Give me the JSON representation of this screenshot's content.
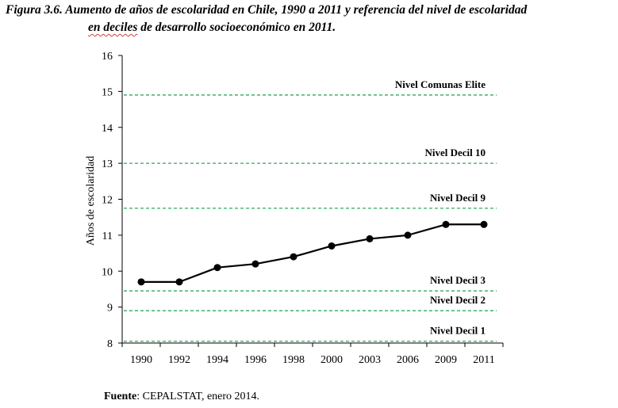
{
  "title": {
    "line1": "Figura 3.6. Aumento de años de escolaridad en Chile, 1990 a 2011 y referencia del nivel de escolaridad",
    "line2_wavy": "en deciles",
    "line2_rest": " de desarrollo socioeconómico en 2011."
  },
  "source": {
    "label": "Fuente",
    "text": ": CEPALSTAT, enero 2014."
  },
  "colors": {
    "series": "#000000",
    "reference": "#2eab5a",
    "axis": "#000000"
  },
  "chart_data": {
    "type": "line",
    "title": "",
    "xlabel": "",
    "ylabel": "Años de escolaridad",
    "ylim": [
      8,
      16
    ],
    "yticks": [
      8,
      9,
      10,
      11,
      12,
      13,
      14,
      15,
      16
    ],
    "categories": [
      "1990",
      "1992",
      "1994",
      "1996",
      "1998",
      "2000",
      "2003",
      "2006",
      "2009",
      "2011"
    ],
    "series": [
      {
        "values": [
          9.7,
          9.7,
          10.1,
          10.2,
          10.4,
          10.7,
          10.9,
          11.0,
          11.3,
          11.3
        ]
      }
    ],
    "reference_lines": [
      {
        "label": "Nivel Comunas Elite",
        "value": 14.9
      },
      {
        "label": "Nivel Decil 10",
        "value": 13.0
      },
      {
        "label": "Nivel Decil 9",
        "value": 11.75
      },
      {
        "label": "Nivel Decil 3",
        "value": 9.45
      },
      {
        "label": "Nivel Decil 2",
        "value": 8.9
      },
      {
        "label": "Nivel Decil 1",
        "value": 8.05
      }
    ],
    "grid": false,
    "legend": "none"
  }
}
